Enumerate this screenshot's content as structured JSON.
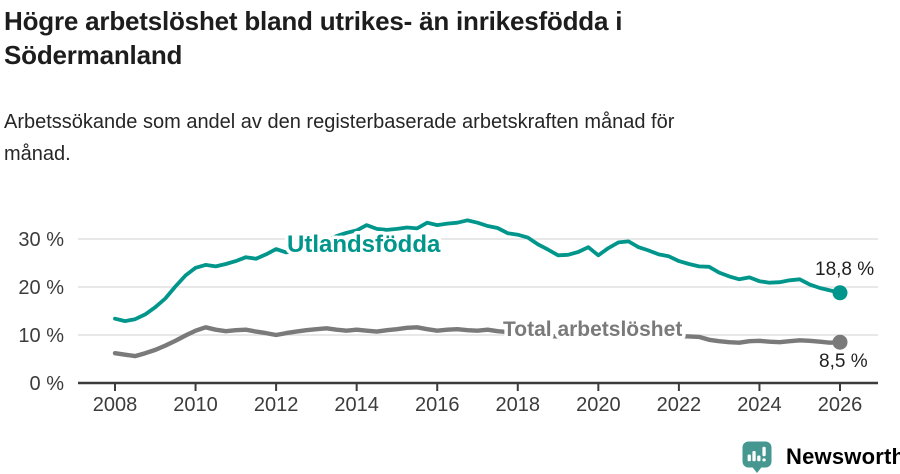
{
  "header": {
    "title": "Högre arbetslöshet bland utrikes- än inrikesfödda i\nSödermanland",
    "subtitle": "Arbetssökande som andel av den registerbaserade arbetskraften månad för\nmånad."
  },
  "chart_data": {
    "type": "line",
    "title": "Högre arbetslöshet bland utrikes- än inrikesfödda i Södermanland",
    "subtitle": "Arbetssökande som andel av den registerbaserade arbetskraften månad för månad.",
    "grid": "horizontal",
    "legend_position": "inline-labels",
    "xlim": [
      2007.1,
      2026.95
    ],
    "ylim": [
      0,
      35.5
    ],
    "x_ticks": [
      2008,
      2010,
      2012,
      2014,
      2016,
      2018,
      2020,
      2022,
      2024,
      2026
    ],
    "y_ticks": [
      {
        "value": 0,
        "label": "0 %"
      },
      {
        "value": 10,
        "label": "10 %"
      },
      {
        "value": 20,
        "label": "20 %"
      },
      {
        "value": 30,
        "label": "30 %"
      }
    ],
    "x": [
      2008,
      2008.25,
      2008.5,
      2008.75,
      2009,
      2009.25,
      2009.5,
      2009.75,
      2010,
      2010.25,
      2010.5,
      2010.75,
      2011,
      2011.25,
      2011.5,
      2011.75,
      2012,
      2012.25,
      2012.5,
      2012.75,
      2013,
      2013.25,
      2013.5,
      2013.75,
      2014,
      2014.25,
      2014.5,
      2014.75,
      2015,
      2015.25,
      2015.5,
      2015.75,
      2016,
      2016.25,
      2016.5,
      2016.75,
      2017,
      2017.25,
      2017.5,
      2017.75,
      2018,
      2018.25,
      2018.5,
      2018.75,
      2019,
      2019.25,
      2019.5,
      2019.75,
      2020,
      2020.25,
      2020.5,
      2020.75,
      2021,
      2021.25,
      2021.5,
      2021.75,
      2022,
      2022.25,
      2022.5,
      2022.75,
      2023,
      2023.25,
      2023.5,
      2023.75,
      2024,
      2024.25,
      2024.5,
      2024.75,
      2025,
      2025.25,
      2025.5,
      2025.75,
      2026
    ],
    "series": [
      {
        "name": "Utlandsfödda",
        "color": "#00968B",
        "end_label": "18,8 %",
        "end_value": 18.8,
        "values": [
          13.4,
          12.9,
          13.3,
          14.3,
          15.8,
          17.6,
          20.1,
          22.4,
          24.0,
          24.6,
          24.3,
          24.8,
          25.4,
          26.2,
          25.9,
          26.8,
          27.9,
          27.2,
          27.5,
          28.2,
          28.8,
          29.6,
          30.6,
          31.3,
          31.8,
          32.9,
          32.1,
          31.9,
          32.1,
          32.4,
          32.2,
          33.4,
          32.9,
          33.2,
          33.4,
          33.9,
          33.4,
          32.7,
          32.3,
          31.2,
          30.9,
          30.3,
          28.9,
          27.8,
          26.6,
          26.7,
          27.3,
          28.3,
          26.6,
          28.1,
          29.3,
          29.5,
          28.3,
          27.6,
          26.8,
          26.4,
          25.4,
          24.8,
          24.3,
          24.2,
          23.0,
          22.2,
          21.6,
          22.0,
          21.2,
          20.9,
          21.0,
          21.4,
          21.6,
          20.5,
          19.8,
          19.3,
          18.8
        ]
      },
      {
        "name": "Total arbetslöshet",
        "color": "#7a7a7a",
        "end_label": "8,5 %",
        "end_value": 8.5,
        "values": [
          6.2,
          5.9,
          5.6,
          6.2,
          6.9,
          7.8,
          8.8,
          9.9,
          10.9,
          11.6,
          11.1,
          10.8,
          11.0,
          11.1,
          10.7,
          10.4,
          10.0,
          10.4,
          10.7,
          11.0,
          11.2,
          11.4,
          11.1,
          10.9,
          11.1,
          10.9,
          10.7,
          11.0,
          11.2,
          11.5,
          11.6,
          11.2,
          10.9,
          11.1,
          11.2,
          11.0,
          10.9,
          11.1,
          10.8,
          10.6,
          10.3,
          10.1,
          9.9,
          9.8,
          9.7,
          9.8,
          9.9,
          10.0,
          10.1,
          10.9,
          11.2,
          11.0,
          10.7,
          10.4,
          10.1,
          9.9,
          9.8,
          9.7,
          9.6,
          9.0,
          8.7,
          8.5,
          8.4,
          8.7,
          8.8,
          8.6,
          8.5,
          8.7,
          8.9,
          8.8,
          8.6,
          8.4,
          8.5
        ]
      }
    ]
  },
  "footer": {
    "brand": "Newsworthy",
    "logo_color": "#45978F",
    "logo_icon": "bar-chart-speech-bubble-icon"
  }
}
